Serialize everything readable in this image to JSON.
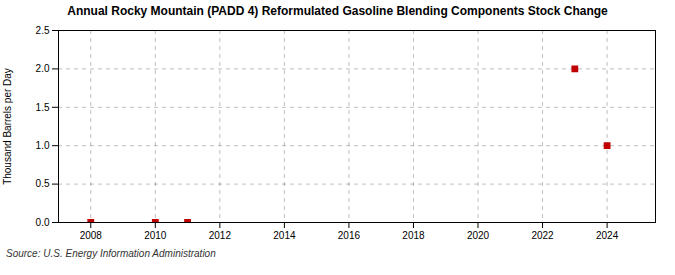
{
  "chart_data": {
    "type": "scatter",
    "title": "Annual Rocky Mountain (PADD 4) Reformulated Gasoline Blending Components Stock Change",
    "ylabel": "Thousand Barrels per Day",
    "source": "Source: U.S. Energy Information Administration",
    "x": [
      2008,
      2010,
      2011,
      2023,
      2024
    ],
    "values": [
      0.0,
      0.0,
      0.0,
      2.0,
      1.0
    ],
    "color": "#c00000",
    "marker": "square",
    "xlim": [
      2007.0,
      2025.5
    ],
    "ylim": [
      0.0,
      2.5
    ],
    "xticks": [
      2008,
      2010,
      2012,
      2014,
      2016,
      2018,
      2020,
      2022,
      2024
    ],
    "yticks": [
      {
        "value": 0.0,
        "label": "0.0"
      },
      0.5,
      {
        "value": 1.0,
        "label": "1.0"
      },
      1.5,
      {
        "value": 2.0,
        "label": "2.0"
      },
      2.5
    ],
    "grid": true
  }
}
